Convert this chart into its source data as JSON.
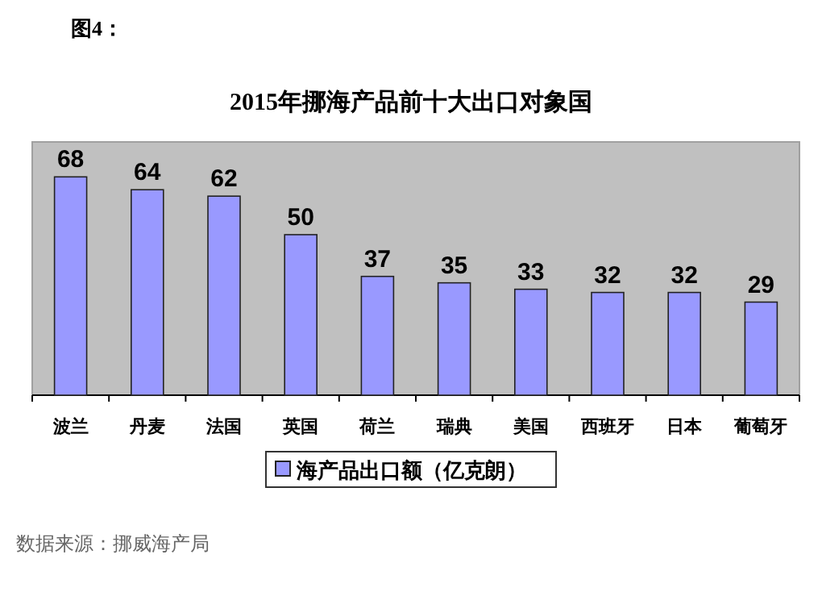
{
  "chart_data": {
    "type": "bar",
    "title": "2015年挪海产品前十大出口对象国",
    "categories": [
      "波兰",
      "丹麦",
      "法国",
      "英国",
      "荷兰",
      "瑞典",
      "美国",
      "西班牙",
      "日本",
      "葡萄牙"
    ],
    "series": [
      {
        "name": "海产品出口额（亿克朗）",
        "color": "#9999ff",
        "values": [
          68,
          64,
          62,
          50,
          37,
          35,
          33,
          32,
          32,
          29
        ]
      }
    ],
    "data_labels": true,
    "legend": "bottom",
    "grid": false,
    "annotations": [
      "图4：",
      "数据来源：挪威海产局"
    ]
  }
}
